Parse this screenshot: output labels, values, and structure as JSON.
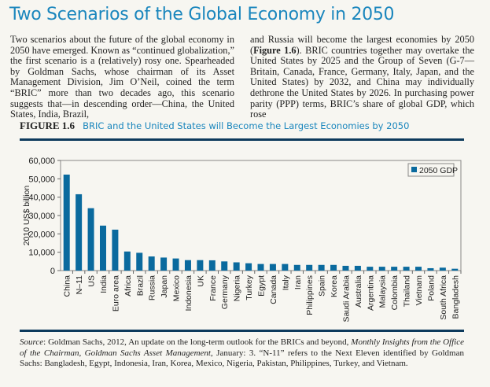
{
  "page": {
    "title": "Two Scenarios of the Global Economy in 2050",
    "col_left": "Two scenarios about the future of the global economy in 2050 have emerged. Known as “continued globalization,” the first scenario is a (relatively) rosy one. Spearheaded by Goldman Sachs, whose chairman of its Asset Management Division, Jim O’Neil, coined the term “BRIC” more than two decades ago, this scenario suggests that—in descending order—China, the United States, India, Brazil,",
    "col_right_1": "and Russia will become the largest economies by 2050 (",
    "col_right_fig": "Figure 1.6",
    "col_right_2": "). BRIC countries together may overtake the United States by 2025 and the Group of Seven (G-7—Britain, Canada, France, Germany, Italy, Japan, and the United States) by 2032, and China may individually dethrone the United States by 2026. In purchasing power parity (PPP) terms, BRIC’s share of global GDP, which rose"
  },
  "figure": {
    "number": "FIGURE 1.6",
    "caption": "BRIC and the United States will Become the Largest Economies by 2050",
    "source_label": "Source",
    "source_1": ": Goldman Sachs, 2012, An update on the long-term outlook for the BRICs and beyond, ",
    "source_italic": "Monthly Insights from the Office of the Chairman, Goldman Sachs Asset Management",
    "source_2": ", January: 3. “N-11” refers to the Next Eleven identified by Goldman Sachs: Bangladesh, Egypt, Indonesia, Iran, Korea, Mexico, Nigeria, Pakistan, Philippines, Turkey, and Vietnam."
  },
  "chart_data": {
    "type": "bar",
    "ylabel": "2010 US$ billion",
    "xlabel": "",
    "ylim": [
      0,
      60000
    ],
    "yticks": [
      "0",
      "10,000",
      "20,000",
      "30,000",
      "40,000",
      "50,000",
      "60,000"
    ],
    "legend_position": "top-right",
    "grid": false,
    "bar_color": "#0a6a9e",
    "categories": [
      "China",
      "N–11",
      "US",
      "India",
      "Euro area",
      "Africa",
      "Brazil",
      "Russia",
      "Japan",
      "Mexico",
      "Indonesia",
      "UK",
      "France",
      "Germany",
      "Nigeria",
      "Turkey",
      "Egypt",
      "Canada",
      "Italy",
      "Iran",
      "Philippines",
      "Spain",
      "Korea",
      "Saudi Arabia",
      "Australia",
      "Argentina",
      "Malaysia",
      "Colombia",
      "Thailand",
      "Vietnam",
      "Poland",
      "South Africa",
      "Bangladesh"
    ],
    "series": [
      {
        "name": "2050 GDP",
        "values": [
          52300,
          41600,
          34000,
          24500,
          22300,
          10400,
          9700,
          7700,
          7100,
          6600,
          5700,
          5700,
          5600,
          5000,
          4500,
          4000,
          3600,
          3600,
          3600,
          3100,
          3100,
          3100,
          3100,
          2600,
          2600,
          2100,
          2100,
          2100,
          2100,
          2100,
          1300,
          1600,
          1000
        ]
      }
    ]
  }
}
